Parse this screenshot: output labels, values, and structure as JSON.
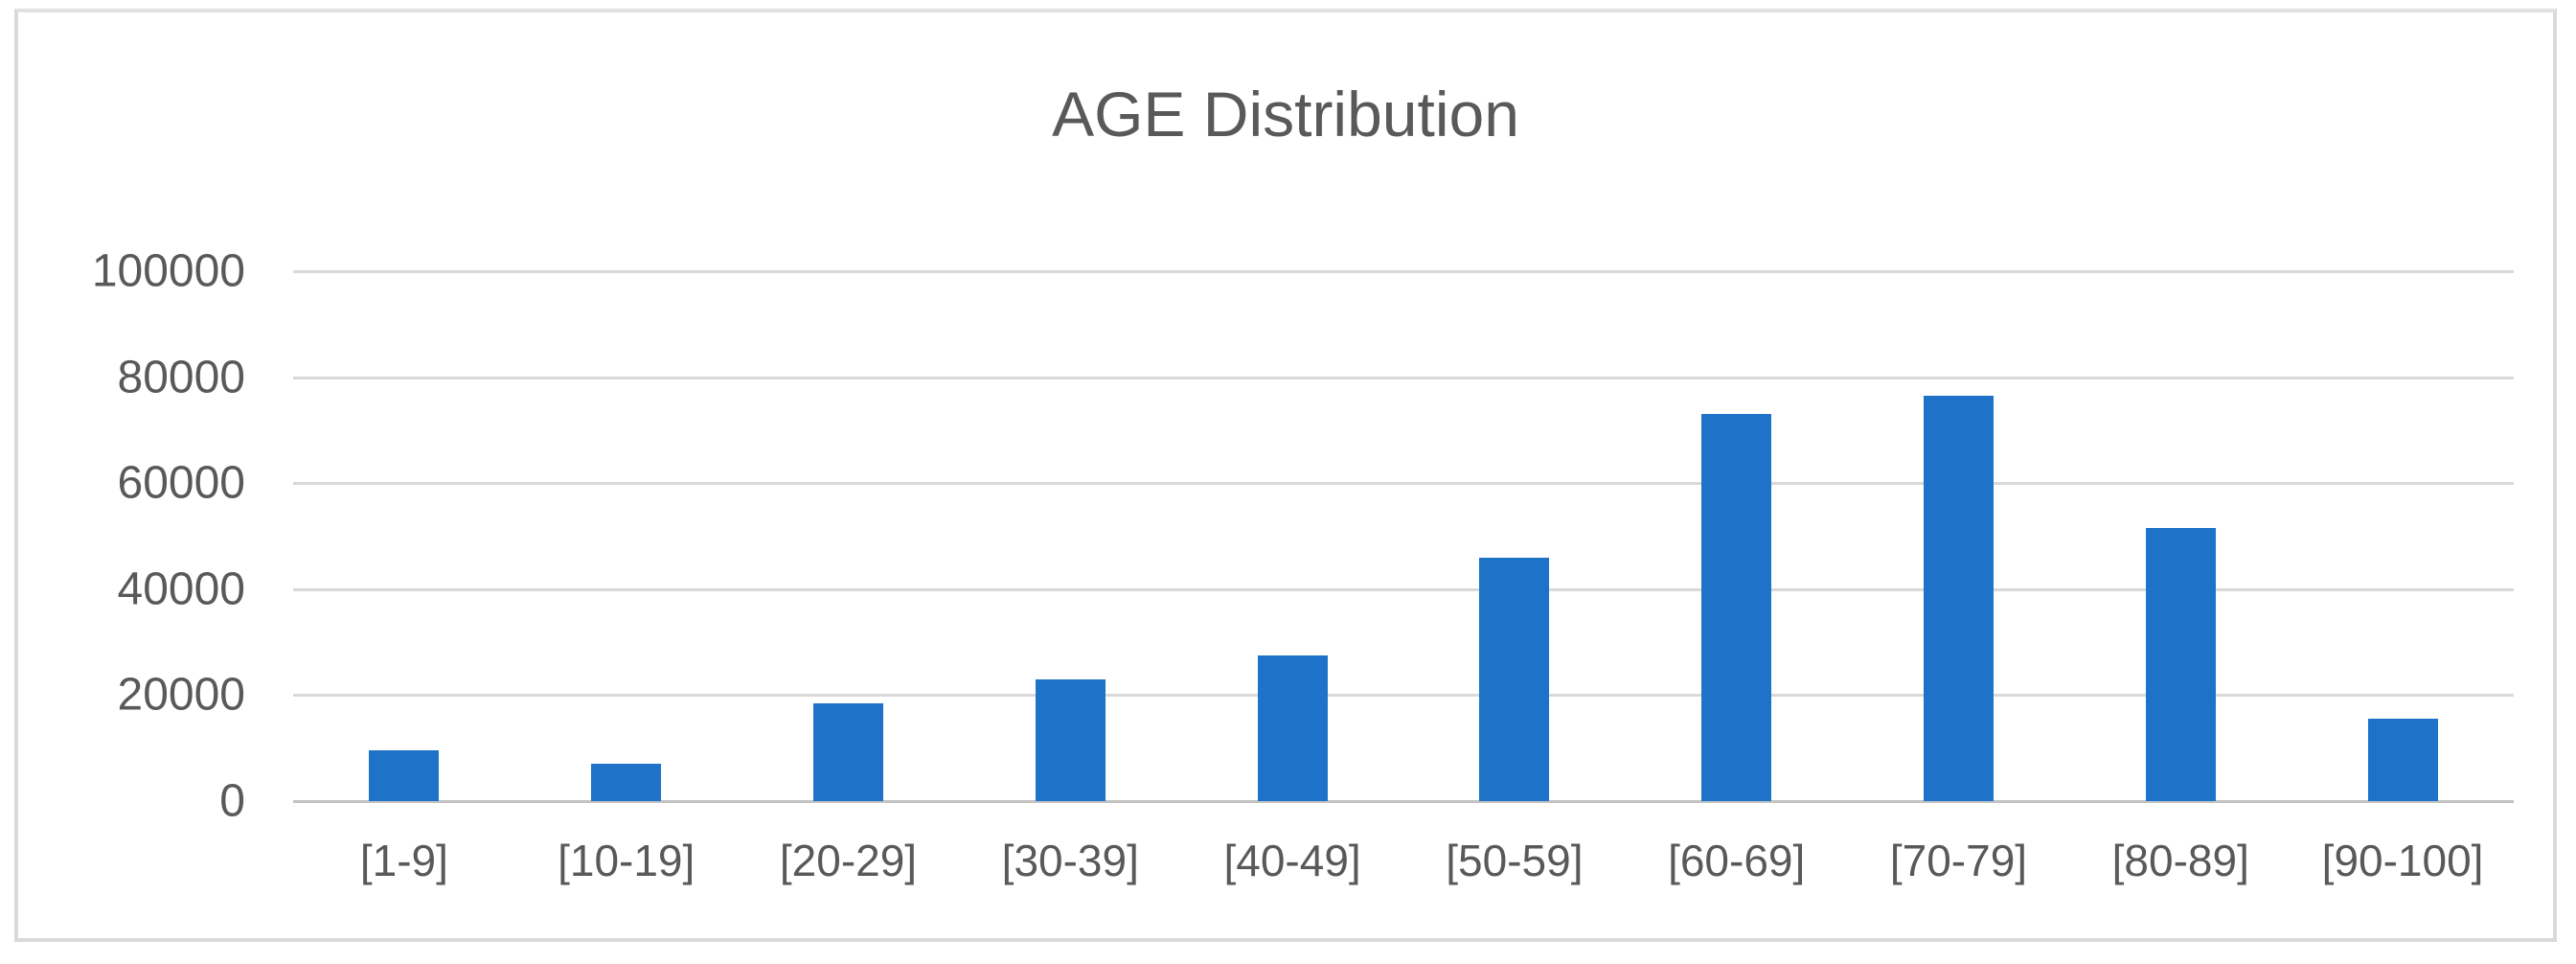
{
  "window": {
    "background": "#ffffff",
    "frame_border_color": "#d9d9d9"
  },
  "chart_data": {
    "type": "bar",
    "title": "AGE Distribution",
    "categories": [
      "[1-9]",
      "[10-19]",
      "[20-29]",
      "[30-39]",
      "[40-49]",
      "[50-59]",
      "[60-69]",
      "[70-79]",
      "[80-89]",
      "[90-100]"
    ],
    "values": [
      9500,
      7000,
      18500,
      23000,
      27500,
      46000,
      73000,
      76500,
      51500,
      15500
    ],
    "xlabel": "",
    "ylabel": "",
    "ylim": [
      0,
      100000
    ],
    "yticks": [
      0,
      20000,
      40000,
      60000,
      80000,
      100000
    ],
    "grid": true,
    "legend": "none",
    "bar_color": "#1e73c8",
    "text_color": "#595959",
    "gridline_color": "#d9d9d9",
    "axis_line_color": "#c3c3c3"
  }
}
